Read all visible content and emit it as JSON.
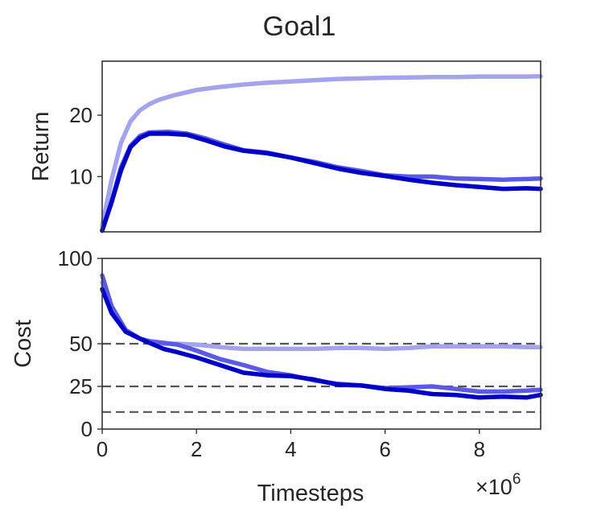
{
  "chart_data": {
    "type": "line",
    "title": "Goal1",
    "xlabel": "Timesteps",
    "x_multiplier_label": "×10",
    "x_multiplier_exponent": "6",
    "xlim": [
      0,
      9.3
    ],
    "xticks": [
      0,
      2,
      4,
      6,
      8
    ],
    "grid": false,
    "panels": [
      {
        "ylabel": "Return",
        "ylim": [
          1,
          28.8
        ],
        "yticks": [
          10,
          20
        ],
        "reference_lines": [],
        "series": [
          {
            "color": "#a3a3ee",
            "x": [
              0,
              0.2,
              0.4,
              0.6,
              0.8,
              1.0,
              1.2,
              1.5,
              2.0,
              2.5,
              3.0,
              3.5,
              4.0,
              4.5,
              5.0,
              5.5,
              6.0,
              6.5,
              7.0,
              7.5,
              8.0,
              8.5,
              9.0,
              9.3
            ],
            "y": [
              2.0,
              9.5,
              15.5,
              19.0,
              20.8,
              21.8,
              22.5,
              23.2,
              24.1,
              24.6,
              25.0,
              25.3,
              25.5,
              25.7,
              25.9,
              26.0,
              26.1,
              26.15,
              26.2,
              26.2,
              26.3,
              26.3,
              26.3,
              26.35
            ]
          },
          {
            "color": "#5a5ae6",
            "x": [
              0,
              0.2,
              0.4,
              0.6,
              0.8,
              1.0,
              1.4,
              1.8,
              2.2,
              2.6,
              3.0,
              3.5,
              4.0,
              4.5,
              5.0,
              5.5,
              6.0,
              6.5,
              7.0,
              7.5,
              8.0,
              8.5,
              9.0,
              9.3
            ],
            "y": [
              1.2,
              6.0,
              11.5,
              15.0,
              16.6,
              17.2,
              17.3,
              17.0,
              16.2,
              15.2,
              14.3,
              13.9,
              13.1,
              12.4,
              11.5,
              10.9,
              10.2,
              10.0,
              10.0,
              9.7,
              9.6,
              9.5,
              9.6,
              9.7
            ]
          },
          {
            "color": "#0000c8",
            "x": [
              0,
              0.2,
              0.4,
              0.6,
              0.8,
              1.0,
              1.4,
              1.8,
              2.2,
              2.6,
              3.0,
              3.5,
              4.0,
              4.5,
              5.0,
              5.5,
              6.0,
              6.5,
              7.0,
              7.5,
              8.0,
              8.5,
              9.0,
              9.3
            ],
            "y": [
              1.2,
              5.8,
              11.0,
              14.8,
              16.3,
              17.0,
              17.0,
              16.8,
              15.9,
              14.9,
              14.2,
              13.8,
              13.1,
              12.2,
              11.3,
              10.6,
              10.1,
              9.5,
              9.0,
              8.6,
              8.3,
              8.0,
              8.1,
              8.0
            ]
          }
        ]
      },
      {
        "ylabel": "Cost",
        "ylim": [
          0,
          100
        ],
        "yticks": [
          0,
          25,
          50,
          100
        ],
        "reference_lines": [
          50,
          25,
          10
        ],
        "series": [
          {
            "color": "#a3a3ee",
            "x": [
              0,
              0.2,
              0.5,
              0.8,
              1.0,
              1.3,
              1.6,
              2.0,
              2.5,
              3.0,
              3.5,
              4.0,
              4.5,
              5.0,
              5.5,
              6.0,
              6.5,
              7.0,
              7.5,
              8.0,
              8.5,
              9.0,
              9.3
            ],
            "y": [
              86,
              70,
              57,
              53,
              51,
              50,
              50,
              49.5,
              48,
              47,
              47,
              47,
              47,
              47.5,
              47.5,
              47,
              47.5,
              48.5,
              48.5,
              48.5,
              48.5,
              48,
              48
            ]
          },
          {
            "color": "#5a5ae6",
            "x": [
              0,
              0.2,
              0.5,
              0.8,
              1.0,
              1.3,
              1.6,
              2.0,
              2.5,
              3.0,
              3.5,
              4.0,
              4.5,
              5.0,
              5.5,
              6.0,
              6.5,
              7.0,
              7.5,
              8.0,
              8.5,
              9.0,
              9.3
            ],
            "y": [
              90,
              72,
              58,
              53,
              51.5,
              50.5,
              49.5,
              46,
              41,
              37.5,
              33.5,
              31.5,
              28.5,
              26.5,
              25.5,
              24,
              24.5,
              25,
              23.5,
              22,
              22,
              22.5,
              23
            ]
          },
          {
            "color": "#0000c8",
            "x": [
              0,
              0.2,
              0.5,
              0.8,
              1.0,
              1.3,
              1.6,
              2.0,
              2.5,
              3.0,
              3.5,
              4.0,
              4.5,
              5.0,
              5.5,
              6.0,
              6.5,
              7.0,
              7.5,
              8.0,
              8.5,
              9.0,
              9.3
            ],
            "y": [
              82,
              68,
              57,
              53,
              50.5,
              47,
              45,
              42,
              37.5,
              33,
              31.5,
              31,
              29,
              26,
              25.5,
              23.5,
              22.5,
              20.5,
              20,
              18.5,
              19,
              18.5,
              20
            ]
          }
        ]
      }
    ]
  }
}
